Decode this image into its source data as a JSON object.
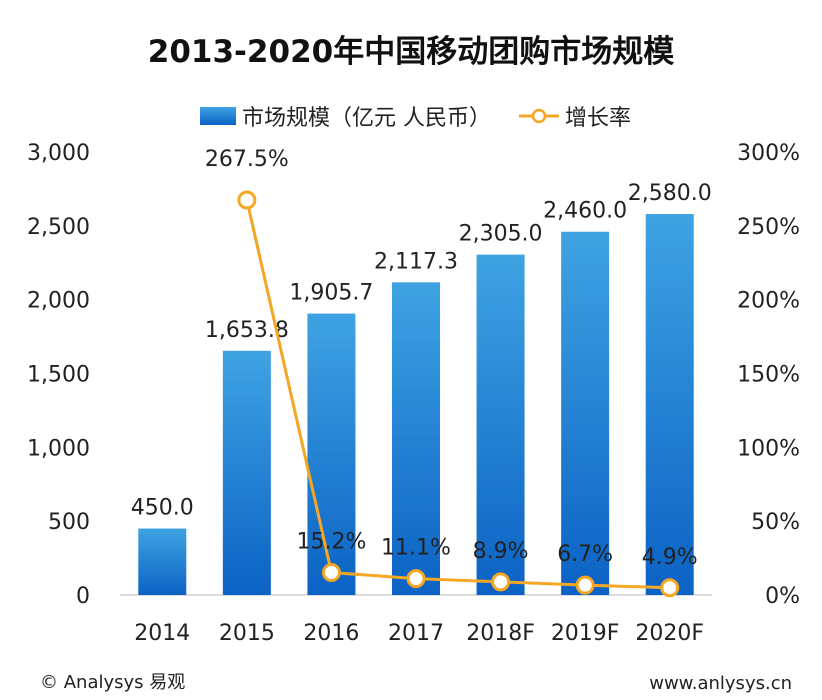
{
  "chart_data": {
    "type": "bar",
    "title": "2013-2020年中国移动团购市场规模",
    "categories": [
      "2014",
      "2015",
      "2016",
      "2017",
      "2018F",
      "2019F",
      "2020F"
    ],
    "series": [
      {
        "name": "市场规模（亿元 人民币）",
        "kind": "bar",
        "axis": "left",
        "values": [
          450.0,
          1653.8,
          1905.7,
          2117.3,
          2305.0,
          2460.0,
          2580.0
        ],
        "labels": [
          "450.0",
          "1,653.8",
          "1,905.7",
          "2,117.3",
          "2,305.0",
          "2,460.0",
          "2,580.0"
        ]
      },
      {
        "name": "增长率",
        "kind": "line",
        "axis": "right",
        "values": [
          null,
          267.5,
          15.2,
          11.1,
          8.9,
          6.7,
          4.9
        ],
        "labels": [
          "",
          "267.5%",
          "15.2%",
          "11.1%",
          "8.9%",
          "6.7%",
          "4.9%"
        ]
      }
    ],
    "y_left": {
      "ylim": [
        0,
        3000
      ],
      "ticks": [
        0,
        500,
        1000,
        1500,
        2000,
        2500,
        3000
      ],
      "tick_labels": [
        "0",
        "500",
        "1,000",
        "1,500",
        "2,000",
        "2,500",
        "3,000"
      ]
    },
    "y_right": {
      "ylim": [
        0,
        300
      ],
      "ticks": [
        0,
        50,
        100,
        150,
        200,
        250,
        300
      ],
      "tick_labels": [
        "0%",
        "50%",
        "100%",
        "150%",
        "200%",
        "250%",
        "300%"
      ]
    },
    "legend_placement": "top-center",
    "grid": false,
    "colors": {
      "bar_top": "#3fa3e2",
      "bar_bottom": "#0b62c4",
      "line": "#f5a623",
      "marker_fill": "#ffffff"
    }
  },
  "footer": {
    "left": "© Analysys 易观",
    "right": "www.anlysys.cn"
  }
}
